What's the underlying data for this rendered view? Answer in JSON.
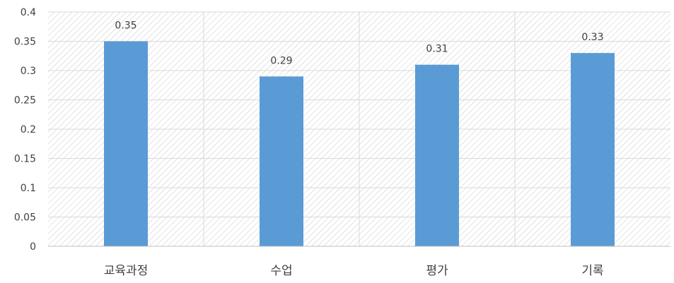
{
  "chart_data": {
    "type": "bar",
    "categories": [
      "교육과정",
      "수업",
      "평가",
      "기록"
    ],
    "values": [
      0.35,
      0.29,
      0.31,
      0.33
    ],
    "data_labels": [
      "0.35",
      "0.29",
      "0.31",
      "0.33"
    ],
    "title": "",
    "xlabel": "",
    "ylabel": "",
    "ylim": [
      0,
      0.4
    ],
    "yticks": [
      0,
      0.05,
      0.1,
      0.15,
      0.2,
      0.25,
      0.3,
      0.35,
      0.4
    ],
    "ytick_labels": [
      "0",
      "0.05",
      "0.1",
      "0.15",
      "0.2",
      "0.25",
      "0.3",
      "0.35",
      "0.4"
    ],
    "grid": true,
    "plot_background": "diagonal hatch",
    "colors": {
      "bar": "#5b9bd5",
      "grid": "#d9d9d9",
      "hatch": "#c8c8c8",
      "text": "#404040",
      "axis": "#bfbfbf"
    }
  }
}
